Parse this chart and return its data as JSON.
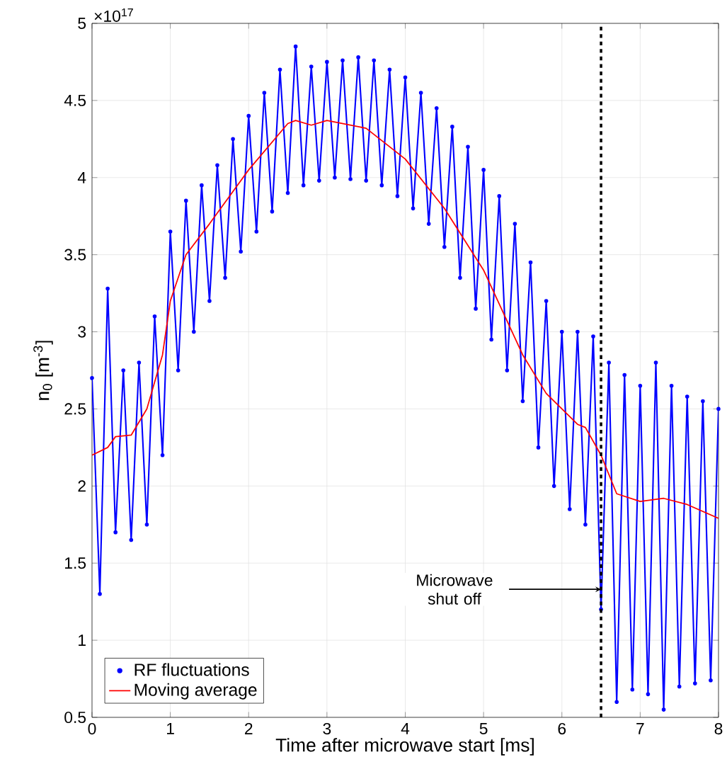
{
  "chart_data": {
    "type": "line",
    "xlabel": "Time after microwave start [ms]",
    "ylabel": "n$_{0}$ [m$^{-3}$]",
    "xlim": [
      0,
      8
    ],
    "ylim": [
      0.5,
      5
    ],
    "xticks": [
      0,
      1,
      2,
      3,
      4,
      5,
      6,
      7,
      8
    ],
    "yticks": [
      0.5,
      1,
      1.5,
      2,
      2.5,
      3,
      3.5,
      4,
      4.5,
      5
    ],
    "grid": true,
    "legend": "bottom left",
    "series": [
      {
        "name": "RF fluctuations",
        "color": "#0000ff",
        "marker": "circle",
        "x": [
          0,
          0.1,
          0.2,
          0.3,
          0.4,
          0.5,
          0.6,
          0.7,
          0.8,
          0.9,
          1.0,
          1.1,
          1.2,
          1.3,
          1.4,
          1.5,
          1.6,
          1.7,
          1.8,
          1.9,
          2.0,
          2.1,
          2.2,
          2.3,
          2.4,
          2.5,
          2.6,
          2.7,
          2.8,
          2.9,
          3.0,
          3.1,
          3.2,
          3.3,
          3.4,
          3.5,
          3.6,
          3.7,
          3.8,
          3.9,
          4.0,
          4.1,
          4.2,
          4.3,
          4.4,
          4.5,
          4.6,
          4.7,
          4.8,
          4.9,
          5.0,
          5.1,
          5.2,
          5.3,
          5.4,
          5.5,
          5.6,
          5.7,
          5.8,
          5.9,
          6.0,
          6.1,
          6.2,
          6.3,
          6.4,
          6.5,
          6.6,
          6.7,
          6.8,
          6.9,
          7.0,
          7.1,
          7.2,
          7.3,
          7.4,
          7.5,
          7.6,
          7.7,
          7.8,
          7.9,
          8.0
        ],
        "values": [
          2.7,
          1.3,
          3.28,
          1.7,
          2.75,
          1.65,
          2.8,
          1.75,
          3.1,
          2.2,
          3.65,
          2.75,
          3.85,
          3.0,
          3.95,
          3.2,
          4.08,
          3.35,
          4.25,
          3.52,
          4.4,
          3.65,
          4.55,
          3.78,
          4.7,
          3.9,
          4.85,
          3.95,
          4.72,
          3.98,
          4.75,
          4.0,
          4.76,
          3.99,
          4.78,
          3.98,
          4.76,
          3.95,
          4.7,
          3.88,
          4.65,
          3.8,
          4.55,
          3.7,
          4.45,
          3.55,
          4.33,
          3.35,
          4.2,
          3.15,
          4.05,
          2.95,
          3.88,
          2.75,
          3.7,
          2.55,
          3.45,
          2.25,
          3.2,
          2.0,
          3.0,
          1.85,
          3.0,
          1.75,
          2.97,
          1.2,
          2.8,
          0.6,
          2.72,
          0.68,
          2.65,
          0.65,
          2.8,
          0.55,
          2.65,
          0.7,
          2.58,
          0.72,
          2.55,
          0.74,
          2.5
        ]
      },
      {
        "name": "Moving average",
        "color": "#ff0000",
        "x": [
          0,
          0.2,
          0.3,
          0.5,
          0.7,
          0.9,
          1.0,
          1.2,
          1.5,
          2.0,
          2.5,
          2.6,
          2.8,
          3.0,
          3.5,
          4.0,
          4.5,
          5.0,
          5.5,
          5.8,
          6.0,
          6.2,
          6.3,
          6.5,
          6.7,
          7.0,
          7.3,
          7.6,
          8.0
        ],
        "values": [
          2.2,
          2.25,
          2.32,
          2.33,
          2.5,
          2.85,
          3.2,
          3.5,
          3.7,
          4.05,
          4.35,
          4.37,
          4.34,
          4.37,
          4.32,
          4.12,
          3.8,
          3.4,
          2.85,
          2.6,
          2.5,
          2.4,
          2.38,
          2.2,
          1.95,
          1.9,
          1.92,
          1.88,
          1.79
        ]
      }
    ],
    "ref_lines": [
      {
        "axis": "x",
        "value": 6.5,
        "color": "#000000",
        "line_style": "dashed"
      }
    ],
    "annotations": [
      "×10$^{17}$",
      {
        "text": "Microwave shut off",
        "x": 6.5,
        "y": 1.33
      }
    ]
  }
}
